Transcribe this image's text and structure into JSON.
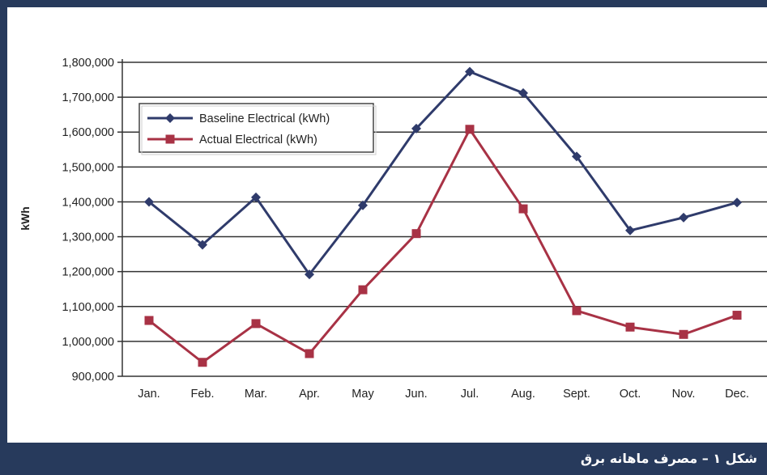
{
  "caption": "شکل ۱ – مصرف ماهانه برق",
  "colors": {
    "frame": "#273a5c",
    "baseline": "#2f3b6b",
    "actual": "#a83245",
    "grid": "#333333"
  },
  "chart_data": {
    "type": "line",
    "title": "",
    "xlabel": "",
    "ylabel": "kWh",
    "categories": [
      "Jan.",
      "Feb.",
      "Mar.",
      "Apr.",
      "May",
      "Jun.",
      "Jul.",
      "Aug.",
      "Sept.",
      "Oct.",
      "Nov.",
      "Dec."
    ],
    "ylim": [
      900000,
      1800000
    ],
    "yticks": [
      900000,
      1000000,
      1100000,
      1200000,
      1300000,
      1400000,
      1500000,
      1600000,
      1700000,
      1800000
    ],
    "ytick_labels": [
      "900,000",
      "1,000,000",
      "1,100,000",
      "1,200,000",
      "1,300,000",
      "1,400,000",
      "1,500,000",
      "1,600,000",
      "1,700,000",
      "1,800,000"
    ],
    "grid": true,
    "legend_position": "top-left",
    "series": [
      {
        "name": "Baseline Electrical (kWh)",
        "marker": "diamond",
        "values": [
          1400000,
          1277000,
          1413000,
          1192000,
          1390000,
          1610000,
          1773000,
          1712000,
          1530000,
          1318000,
          1355000,
          1398000
        ]
      },
      {
        "name": "Actual Electrical (kWh)",
        "marker": "square",
        "values": [
          1060000,
          940000,
          1051000,
          965000,
          1148000,
          1309000,
          1608000,
          1380000,
          1088000,
          1041000,
          1020000,
          1075000
        ]
      }
    ]
  }
}
